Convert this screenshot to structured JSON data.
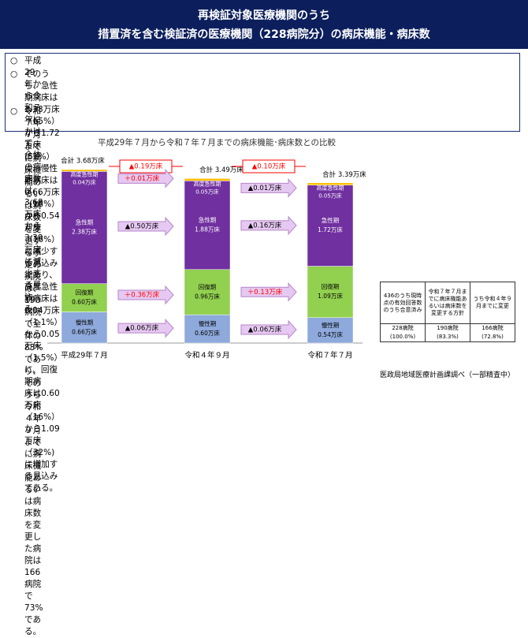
{
  "header": {
    "title_line1": "再検証対象医療機関のうち",
    "title_line2": "措置済を含む検証済の医療機関（228病院分）の病床機能・病床数"
  },
  "bullets": [
    {
      "marker": "○",
      "text": "平成29年から令和７年にかけて、全体の病床数は3.68万床から3.39万床に減少する見込み。"
    },
    {
      "marker": "○",
      "text": "そのうち、急性期病床は2.38万床（65%）から1.72万床(51%）に、慢性期病床は0.66万床（18%）から0.54\n万床（16%）に減少する見込みであり、高度急性期病床は0.04万床（1.1%）から0.05万床（1.5%）に、回復期病\n床は0.60万床（16%）から1.09万床（32%)に増加する見込みである。"
    },
    {
      "marker": "○",
      "text": "令和７年７月までに病床機能あるいは病床数を変更する予定の病院は、190病院で全体の83%であり、そのうち\n令和４年９月までに病床機能あるいは病床数を変更した病院は166病院で73%である。"
    }
  ],
  "chart_data": {
    "type": "bar",
    "stacked": true,
    "title": "平成29年７月から令和７年７月までの病床機能･病床数との比較",
    "categories": [
      "平成29年７月",
      "令和４年９月",
      "令和７年７月"
    ],
    "unit": "万床",
    "series": [
      {
        "name": "慢性期",
        "values": [
          0.66,
          0.6,
          0.54
        ],
        "labels": [
          "0.66万床",
          "0.60万床",
          "0.54万床"
        ],
        "color": "#8ea9db"
      },
      {
        "name": "回復期",
        "values": [
          0.6,
          0.96,
          1.09
        ],
        "labels": [
          "0.60万床",
          "0.96万床",
          "1.09万床"
        ],
        "color": "#92d050"
      },
      {
        "name": "急性期",
        "values": [
          2.38,
          1.88,
          1.72
        ],
        "labels": [
          "2.38万床",
          "1.88万床",
          "1.72万床"
        ],
        "color": "#7030a0"
      },
      {
        "name": "高度急性期",
        "values": [
          0.04,
          0.05,
          0.05
        ],
        "labels": [
          "0.04万床",
          "0.05万床",
          "0.05万床"
        ],
        "color": "#ffc000"
      }
    ],
    "totals": [
      3.68,
      3.49,
      3.39
    ],
    "total_labels": [
      "合計 3.68万床",
      "合計 3.49万床",
      "合計 3.39万床"
    ],
    "total_changes": [
      "▲0.19万床",
      "▲0.10万床"
    ],
    "segment_changes": [
      {
        "高度急性期": "＋0.01万床",
        "急性期": "▲0.50万床",
        "回復期": "＋0.36万床",
        "慢性期": "▲0.06万床"
      },
      {
        "高度急性期": "▲0.01万床",
        "急性期": "▲0.16万床",
        "回復期": "＋0.13万床",
        "慢性期": "▲0.06万床"
      }
    ],
    "colors": {
      "total_change": "#ff0000",
      "arrow_fill": "#e6c9f2",
      "arrow_stroke": "#b685c9",
      "negative_text": "#000000",
      "positive_text": "#ff0000"
    }
  },
  "summary_table": {
    "headers": [
      "436のうち現時点の有効回答数のうち合意済み",
      "令和７年７月までに病床機能あるいは病床数を変更する方針",
      "うち令和４年９月までに変更"
    ],
    "values": [
      "228病院",
      "190病院",
      "166病院"
    ],
    "percents": [
      "(100.0%)",
      "(83.3%)",
      "(72.8%)"
    ]
  },
  "source_note": "医政局地域医療計画課調べ（一部精査中）"
}
